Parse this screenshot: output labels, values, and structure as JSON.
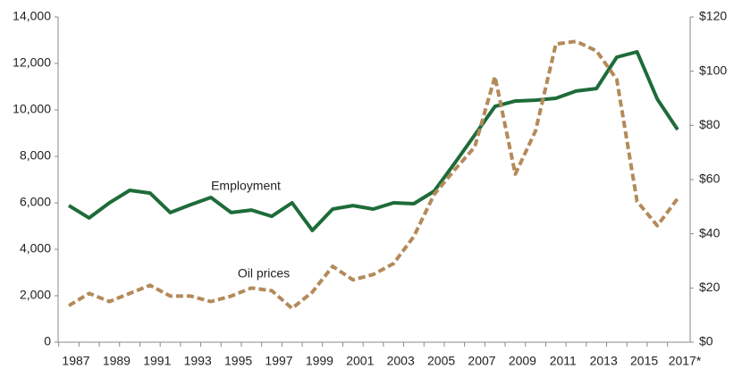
{
  "chart_data": {
    "type": "line",
    "categories": [
      "1987",
      null,
      "1989",
      null,
      "1991",
      null,
      "1993",
      null,
      "1995",
      null,
      "1997",
      null,
      "1999",
      null,
      "2001",
      null,
      "2003",
      null,
      "2005",
      null,
      "2007",
      null,
      "2009",
      null,
      "2011",
      null,
      "2013",
      null,
      "2015",
      null,
      "2017*"
    ],
    "series": [
      {
        "name": "Employment",
        "color": "#1e6b3a",
        "axis": "y",
        "values": [
          5880,
          5350,
          6000,
          6540,
          6420,
          5580,
          5920,
          6230,
          5580,
          5690,
          5420,
          6000,
          4810,
          5730,
          5880,
          5730,
          6000,
          5960,
          6500,
          7690,
          8920,
          10150,
          10380,
          10420,
          10500,
          10810,
          10920,
          12270,
          12500,
          10460,
          9150
        ]
      },
      {
        "name": "Oil prices",
        "color": "#b48a5a",
        "axis": "y2",
        "dashed": true,
        "values": [
          13.5,
          18,
          15,
          18,
          21,
          17,
          17,
          15,
          17,
          20,
          19,
          12.5,
          18.5,
          28,
          23,
          25,
          29,
          39,
          54.5,
          63.5,
          72,
          98,
          62,
          78,
          110,
          111,
          107.5,
          97,
          52,
          43,
          53
        ]
      }
    ],
    "ylim": [
      0,
      14000
    ],
    "yticks": [
      0,
      {
        "value": 2000,
        "label": "2,000"
      },
      {
        "value": 4000,
        "label": "4,000"
      },
      {
        "value": 6000,
        "label": "6,000"
      },
      {
        "value": 8000,
        "label": "8,000"
      },
      {
        "value": 10000,
        "label": "10,000"
      },
      {
        "value": 12000,
        "label": "12,000"
      },
      {
        "value": 14000,
        "label": "14,000"
      }
    ],
    "y2lim": [
      0,
      120
    ],
    "y2ticks": [
      {
        "value": 0,
        "label": "$0"
      },
      {
        "value": 20,
        "label": "$20"
      },
      {
        "value": 40,
        "label": "$40"
      },
      {
        "value": 60,
        "label": "$60"
      },
      {
        "value": 80,
        "label": "$80"
      },
      {
        "value": 100,
        "label": "$100"
      },
      {
        "value": 120,
        "label": "$120"
      }
    ],
    "grid": false
  }
}
